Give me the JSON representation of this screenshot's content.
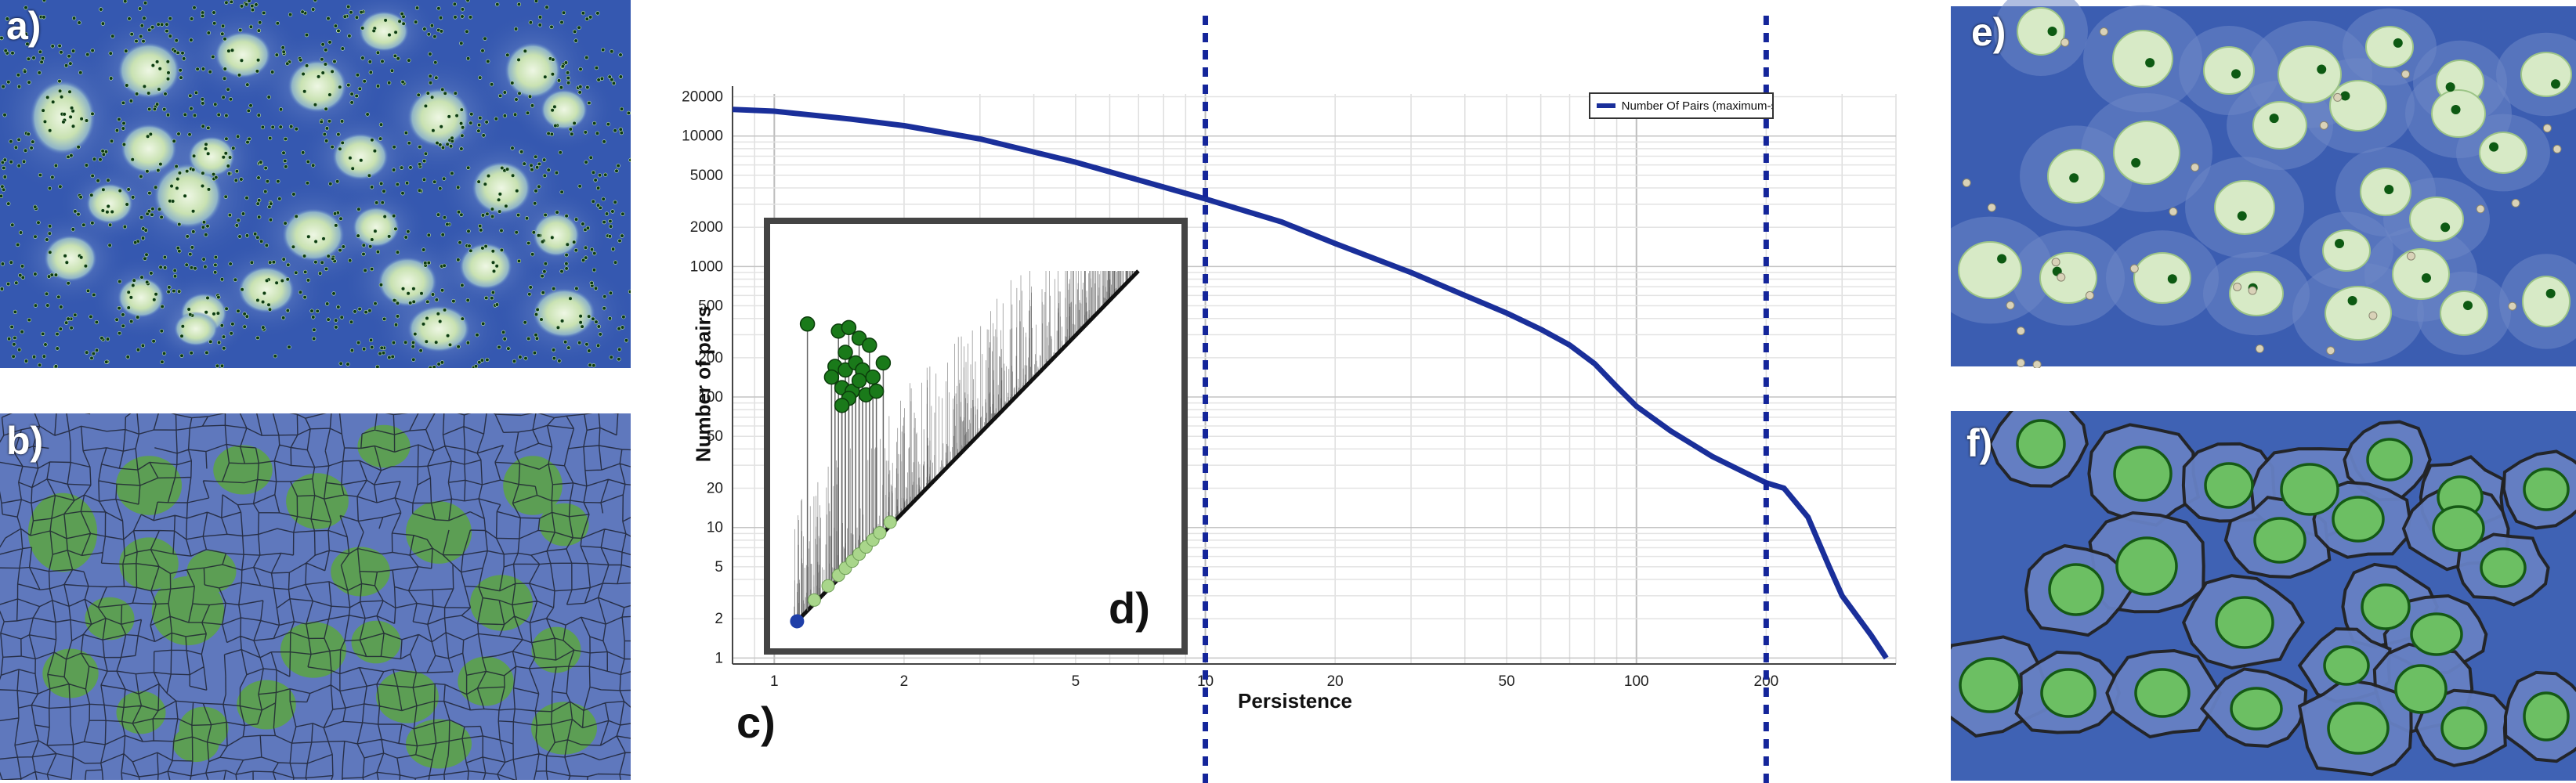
{
  "panel_labels": {
    "a": "a)",
    "b": "b)",
    "c": "c)",
    "d": "d)",
    "e": "e)",
    "f": "f)"
  },
  "colors": {
    "field_blue": "#3d5eb0",
    "field_dark": "#2a4aa3",
    "cell_light": "#dfeecf",
    "cell_green": "#7fbf68",
    "cell_dark_green": "#1f6a1f",
    "curve": "#1a2f9a",
    "threshold_line": "#14259a",
    "point_green": "#1a7a1a",
    "point_light_green": "#a9d68b",
    "point_blue": "#1f3fa8"
  },
  "chart_data": [
    {
      "type": "line",
      "xscale": "log",
      "yscale": "log",
      "xlabel": "Persistence",
      "ylabel": "Number of pairs",
      "xlim": [
        0.8,
        400
      ],
      "ylim": [
        0.9,
        21000
      ],
      "x_ticks": [
        1,
        2,
        5,
        10,
        20,
        50,
        100,
        200
      ],
      "x_tick_labels": [
        "1",
        "2",
        "5",
        "10",
        "20",
        "50",
        "100",
        "200"
      ],
      "y_ticks": [
        1,
        2,
        5,
        10,
        20,
        50,
        100,
        200,
        500,
        1000,
        2000,
        5000,
        10000,
        20000
      ],
      "y_tick_labels": [
        "1",
        "2",
        "5",
        "10",
        "20",
        "50",
        "100",
        "200",
        "500",
        "1000",
        "2000",
        "5000",
        "10000",
        "20000"
      ],
      "grid": true,
      "legend_position": "top-right",
      "series": [
        {
          "name": "Number Of Pairs (maximum-saddle pairs)",
          "x": [
            0.8,
            1,
            1.5,
            2,
            3,
            5,
            7,
            10,
            15,
            20,
            30,
            40,
            50,
            60,
            70,
            80,
            90,
            100,
            120,
            150,
            180,
            200,
            220,
            250,
            280,
            300,
            350,
            380
          ],
          "y": [
            16000,
            15500,
            13500,
            12000,
            9500,
            6300,
            4600,
            3300,
            2200,
            1500,
            900,
            600,
            440,
            330,
            250,
            180,
            120,
            85,
            55,
            35,
            26,
            22,
            20,
            12,
            5,
            3,
            1.5,
            1
          ]
        }
      ],
      "threshold_lines": [
        10,
        200
      ]
    },
    {
      "type": "scatter",
      "inset": true,
      "description": "persistence diagram",
      "persistent_points": [
        {
          "x": 0.04,
          "y": 0.85
        },
        {
          "x": 0.13,
          "y": 0.83
        },
        {
          "x": 0.16,
          "y": 0.84
        },
        {
          "x": 0.15,
          "y": 0.77
        },
        {
          "x": 0.19,
          "y": 0.81
        },
        {
          "x": 0.22,
          "y": 0.79
        },
        {
          "x": 0.12,
          "y": 0.73
        },
        {
          "x": 0.15,
          "y": 0.72
        },
        {
          "x": 0.18,
          "y": 0.74
        },
        {
          "x": 0.11,
          "y": 0.7
        },
        {
          "x": 0.14,
          "y": 0.67
        },
        {
          "x": 0.2,
          "y": 0.72
        },
        {
          "x": 0.23,
          "y": 0.7
        },
        {
          "x": 0.17,
          "y": 0.66
        },
        {
          "x": 0.19,
          "y": 0.69
        },
        {
          "x": 0.16,
          "y": 0.64
        },
        {
          "x": 0.21,
          "y": 0.65
        },
        {
          "x": 0.26,
          "y": 0.74
        },
        {
          "x": 0.14,
          "y": 0.62
        },
        {
          "x": 0.24,
          "y": 0.66
        }
      ],
      "saddle_points": [
        {
          "x": 0.06,
          "y": 0.07
        },
        {
          "x": 0.1,
          "y": 0.11
        },
        {
          "x": 0.13,
          "y": 0.14
        },
        {
          "x": 0.15,
          "y": 0.16
        },
        {
          "x": 0.17,
          "y": 0.18
        },
        {
          "x": 0.19,
          "y": 0.2
        },
        {
          "x": 0.21,
          "y": 0.22
        },
        {
          "x": 0.23,
          "y": 0.24
        },
        {
          "x": 0.25,
          "y": 0.26
        },
        {
          "x": 0.28,
          "y": 0.29
        }
      ],
      "origin_point": {
        "x": 0.01,
        "y": 0.01
      }
    }
  ]
}
